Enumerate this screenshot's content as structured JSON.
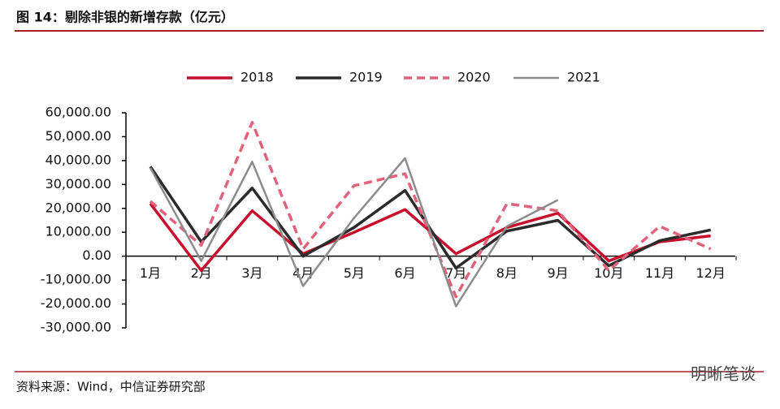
{
  "chart_data": {
    "type": "line",
    "title": "图 14：剔除非银的新增存款（亿元）",
    "source": "资料来源：Wind，中信证券研究部",
    "watermark": "明晰笔谈",
    "categories": [
      "1月",
      "2月",
      "3月",
      "4月",
      "5月",
      "6月",
      "7月",
      "8月",
      "9月",
      "10月",
      "11月",
      "12月"
    ],
    "series": [
      {
        "name": "2018",
        "color": "#c8102e",
        "style": "solid",
        "values": [
          22000,
          -6000,
          19000,
          1000,
          10000,
          19500,
          1000,
          12000,
          18000,
          -2000,
          6000,
          8500
        ]
      },
      {
        "name": "2019",
        "color": "#2b2b2b",
        "style": "solid",
        "values": [
          37500,
          6000,
          28500,
          0,
          12000,
          27500,
          -5000,
          10500,
          15000,
          -4000,
          6500,
          11000
        ]
      },
      {
        "name": "2020",
        "color": "#e0637b",
        "style": "dashed",
        "values": [
          23000,
          4500,
          56000,
          3000,
          29500,
          34500,
          -17000,
          22000,
          19000,
          -6000,
          12500,
          3000
        ]
      },
      {
        "name": "2021",
        "color": "#8c8c8c",
        "style": "solid",
        "values": [
          37000,
          -2000,
          39500,
          -12500,
          16000,
          41000,
          -21000,
          12500,
          23500,
          null,
          null,
          null
        ]
      }
    ],
    "ylim": [
      -30000,
      60000
    ],
    "yticks": [
      {
        "value": -30000,
        "label": "-30,000.00"
      },
      {
        "value": -20000,
        "label": "-20,000.00"
      },
      {
        "value": -10000,
        "label": "-10,000.00"
      },
      {
        "value": 0,
        "label": "0.00"
      },
      {
        "value": 10000,
        "label": "10,000.00"
      },
      {
        "value": 20000,
        "label": "20,000.00"
      },
      {
        "value": 30000,
        "label": "30,000.00"
      },
      {
        "value": 40000,
        "label": "40,000.00"
      },
      {
        "value": 50000,
        "label": "50,000.00"
      },
      {
        "value": 60000,
        "label": "60,000.00"
      }
    ],
    "legend": "top"
  }
}
